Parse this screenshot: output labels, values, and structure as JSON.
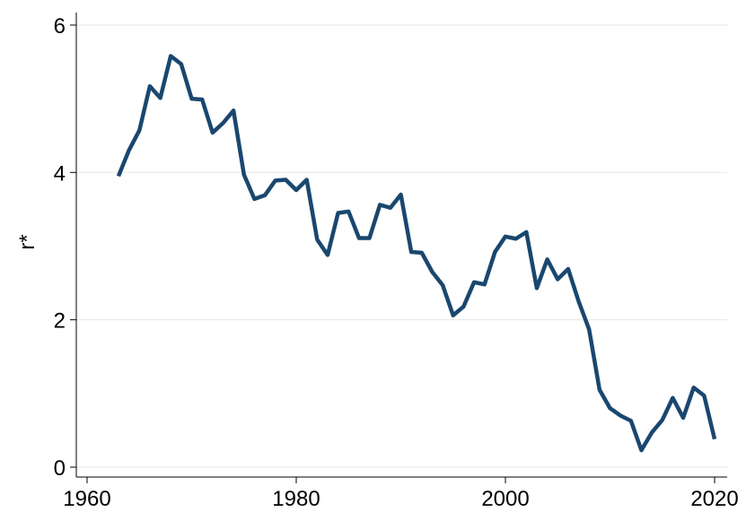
{
  "chart_data": {
    "type": "line",
    "y_label": "r*",
    "x": [
      1963,
      1964,
      1965,
      1966,
      1967,
      1968,
      1969,
      1970,
      1971,
      1972,
      1973,
      1974,
      1975,
      1976,
      1977,
      1978,
      1979,
      1980,
      1981,
      1982,
      1983,
      1984,
      1985,
      1986,
      1987,
      1988,
      1989,
      1990,
      1991,
      1992,
      1993,
      1994,
      1995,
      1996,
      1997,
      1998,
      1999,
      2000,
      2001,
      2002,
      2003,
      2004,
      2005,
      2006,
      2007,
      2008,
      2009,
      2010,
      2011,
      2012,
      2013,
      2014,
      2015,
      2016,
      2017,
      2018,
      2019,
      2020
    ],
    "series": [
      {
        "color": "#1a476f",
        "values": [
          3.95,
          4.3,
          4.57,
          5.17,
          5.01,
          5.58,
          5.47,
          5.0,
          4.99,
          4.54,
          4.67,
          4.84,
          3.97,
          3.64,
          3.69,
          3.89,
          3.9,
          3.76,
          3.9,
          3.09,
          2.88,
          3.45,
          3.47,
          3.11,
          3.11,
          3.56,
          3.52,
          3.7,
          2.92,
          2.91,
          2.65,
          2.47,
          2.06,
          2.18,
          2.51,
          2.48,
          2.92,
          3.13,
          3.1,
          3.19,
          2.43,
          2.82,
          2.55,
          2.69,
          2.25,
          1.87,
          1.05,
          0.8,
          0.7,
          0.63,
          0.23,
          0.47,
          0.64,
          0.94,
          0.67,
          1.08,
          0.97,
          0.38
        ]
      }
    ],
    "xlim": [
      1958.97,
      2021.2
    ],
    "xticks": [
      1960,
      1980,
      2000,
      2020
    ],
    "ylim": [
      -0.134,
      6.17
    ],
    "yticks": [
      0,
      2,
      4,
      6
    ],
    "grid": true
  }
}
